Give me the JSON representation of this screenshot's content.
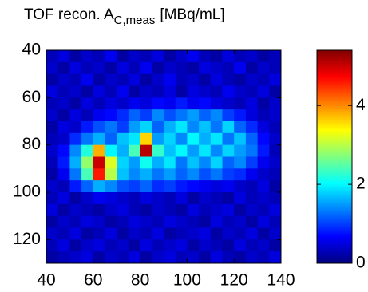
{
  "chart_data": {
    "type": "heatmap",
    "title": "TOF recon. A",
    "title_subscript": "C,meas",
    "title_suffix": "[MBq/mL]",
    "colormap": "jet",
    "xlim": [
      40,
      140
    ],
    "ylim": [
      40,
      130
    ],
    "y_reversed": true,
    "xticks": [
      40,
      60,
      80,
      100,
      120,
      140
    ],
    "yticks": [
      40,
      60,
      80,
      100,
      120
    ],
    "clim": [
      0,
      5.4
    ],
    "cticks": [
      0,
      2,
      4
    ],
    "x": [
      42.5,
      47.5,
      52.5,
      57.5,
      62.5,
      67.5,
      72.5,
      77.5,
      82.5,
      87.5,
      92.5,
      97.5,
      102.5,
      107.5,
      112.5,
      117.5,
      122.5,
      127.5,
      132.5,
      137.5
    ],
    "y": [
      42.5,
      47.5,
      52.5,
      57.5,
      62.5,
      67.5,
      72.5,
      77.5,
      82.5,
      87.5,
      92.5,
      97.5,
      102.5,
      107.5,
      112.5,
      117.5,
      122.5,
      127.5
    ],
    "z": [
      [
        0.3,
        0.5,
        0.2,
        0.4,
        0.3,
        0.6,
        0.2,
        0.4,
        0.3,
        0.5,
        0.2,
        0.4,
        0.6,
        0.3,
        0.2,
        0.5,
        0.3,
        0.4,
        0.2,
        0.3
      ],
      [
        0.4,
        0.2,
        0.5,
        0.3,
        0.4,
        0.2,
        0.5,
        0.3,
        0.6,
        0.2,
        0.4,
        0.3,
        0.2,
        0.5,
        0.4,
        0.3,
        0.6,
        0.2,
        0.4,
        0.3
      ],
      [
        0.2,
        0.4,
        0.3,
        0.6,
        0.2,
        0.4,
        0.3,
        0.5,
        0.2,
        0.4,
        0.6,
        0.3,
        0.4,
        0.2,
        0.5,
        0.3,
        0.2,
        0.4,
        0.3,
        0.5
      ],
      [
        0.5,
        0.3,
        0.4,
        0.2,
        0.5,
        0.3,
        0.6,
        0.2,
        0.4,
        0.3,
        0.5,
        0.2,
        0.5,
        0.4,
        0.3,
        0.6,
        0.4,
        0.3,
        0.5,
        0.2
      ],
      [
        0.3,
        0.4,
        0.2,
        0.5,
        0.3,
        0.5,
        0.4,
        0.6,
        0.5,
        0.7,
        0.6,
        0.8,
        0.6,
        0.7,
        0.5,
        0.4,
        0.3,
        0.5,
        0.2,
        0.4
      ],
      [
        0.4,
        0.2,
        0.5,
        0.3,
        0.6,
        0.7,
        0.9,
        1.2,
        1.0,
        1.4,
        1.1,
        1.3,
        1.5,
        1.2,
        1.4,
        1.0,
        0.8,
        0.5,
        0.3,
        0.4
      ],
      [
        0.2,
        0.5,
        0.4,
        0.8,
        1.1,
        1.3,
        1.0,
        1.5,
        1.8,
        1.2,
        1.6,
        1.9,
        1.4,
        1.7,
        1.3,
        1.8,
        1.2,
        0.9,
        0.5,
        0.3
      ],
      [
        0.3,
        0.4,
        0.9,
        1.3,
        1.6,
        1.2,
        1.7,
        1.9,
        3.6,
        1.5,
        1.8,
        1.4,
        2.0,
        1.6,
        1.9,
        1.3,
        1.7,
        1.2,
        0.7,
        0.4
      ],
      [
        0.4,
        0.7,
        1.4,
        2.2,
        3.8,
        2.0,
        1.6,
        2.4,
        5.1,
        2.3,
        1.7,
        2.0,
        1.5,
        1.9,
        1.4,
        1.8,
        1.5,
        1.3,
        0.8,
        0.3
      ],
      [
        0.3,
        0.8,
        1.6,
        2.8,
        5.0,
        3.2,
        1.8,
        1.5,
        2.1,
        1.6,
        1.9,
        1.3,
        1.7,
        1.4,
        1.8,
        1.2,
        1.4,
        1.0,
        0.6,
        0.4
      ],
      [
        0.2,
        0.6,
        1.3,
        2.4,
        4.6,
        3.0,
        1.7,
        1.4,
        1.6,
        1.3,
        1.5,
        1.2,
        1.4,
        1.1,
        1.3,
        1.0,
        0.9,
        0.6,
        0.4,
        0.3
      ],
      [
        0.4,
        0.3,
        0.8,
        1.2,
        1.6,
        1.4,
        1.1,
        1.0,
        1.2,
        0.9,
        1.0,
        0.8,
        0.7,
        0.6,
        0.5,
        0.6,
        0.4,
        0.3,
        0.5,
        0.2
      ],
      [
        0.3,
        0.5,
        0.2,
        0.4,
        0.6,
        0.5,
        0.4,
        0.3,
        0.5,
        0.4,
        0.3,
        0.5,
        0.2,
        0.4,
        0.3,
        0.2,
        0.5,
        0.3,
        0.4,
        0.3
      ],
      [
        0.5,
        0.2,
        0.4,
        0.3,
        0.2,
        0.4,
        0.5,
        0.3,
        0.2,
        0.4,
        0.3,
        0.2,
        0.5,
        0.3,
        0.4,
        0.5,
        0.2,
        0.4,
        0.3,
        0.5
      ],
      [
        0.2,
        0.4,
        0.3,
        0.5,
        0.4,
        0.2,
        0.3,
        0.5,
        0.4,
        0.3,
        0.5,
        0.4,
        0.3,
        0.2,
        0.5,
        0.3,
        0.4,
        0.2,
        0.5,
        0.3
      ],
      [
        0.4,
        0.3,
        0.5,
        0.2,
        0.3,
        0.5,
        0.2,
        0.4,
        0.3,
        0.5,
        0.2,
        0.3,
        0.4,
        0.5,
        0.2,
        0.4,
        0.3,
        0.5,
        0.2,
        0.4
      ],
      [
        0.3,
        0.5,
        0.2,
        0.4,
        0.5,
        0.3,
        0.4,
        0.2,
        0.5,
        0.3,
        0.4,
        0.5,
        0.2,
        0.4,
        0.3,
        0.2,
        0.5,
        0.3,
        0.4,
        0.2
      ],
      [
        0.2,
        0.3,
        0.4,
        0.5,
        0.2,
        0.4,
        0.3,
        0.5,
        0.2,
        0.4,
        0.5,
        0.3,
        0.4,
        0.2,
        0.5,
        0.3,
        0.2,
        0.4,
        0.3,
        0.5
      ]
    ]
  }
}
